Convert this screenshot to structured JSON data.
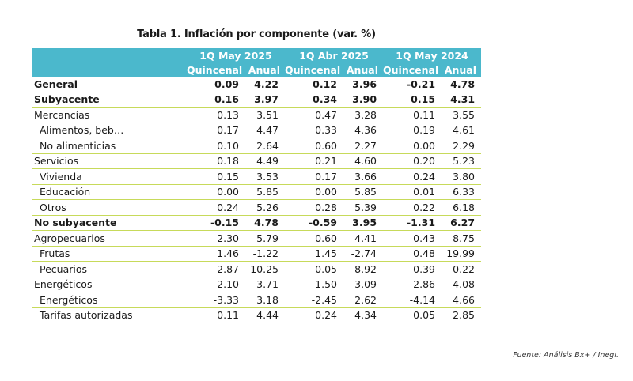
{
  "title": "Tabla 1. Inflación por componente (var. %)",
  "periods": [
    "1Q May 2025",
    "1Q Abr 2025",
    "1Q May 2024"
  ],
  "subheaders": [
    "Quincenal",
    "Anual",
    "Quincenal",
    "Anual",
    "Quincenal",
    "Anual"
  ],
  "rows": [
    {
      "label": "General",
      "values": [
        "0.09",
        "4.22",
        "0.12",
        "3.96",
        "-0.21",
        "4.78"
      ]
    },
    {
      "label": "Subyacente",
      "values": [
        "0.16",
        "3.97",
        "0.34",
        "3.90",
        "0.15",
        "4.31"
      ]
    },
    {
      "label": "Mercancías",
      "values": [
        "0.13",
        "3.51",
        "0.47",
        "3.28",
        "0.11",
        "3.55"
      ]
    },
    {
      "label": "Alimentos, beb…",
      "values": [
        "0.17",
        "4.47",
        "0.33",
        "4.36",
        "0.19",
        "4.61"
      ]
    },
    {
      "label": "No alimenticias",
      "values": [
        "0.10",
        "2.64",
        "0.60",
        "2.27",
        "0.00",
        "2.29"
      ]
    },
    {
      "label": "Servicios",
      "values": [
        "0.18",
        "4.49",
        "0.21",
        "4.60",
        "0.20",
        "5.23"
      ]
    },
    {
      "label": "Vivienda",
      "values": [
        "0.15",
        "3.53",
        "0.17",
        "3.66",
        "0.24",
        "3.80"
      ]
    },
    {
      "label": "Educación",
      "values": [
        "0.00",
        "5.85",
        "0.00",
        "5.85",
        "0.01",
        "6.33"
      ]
    },
    {
      "label": "Otros",
      "values": [
        "0.24",
        "5.26",
        "0.28",
        "5.39",
        "0.22",
        "6.18"
      ]
    },
    {
      "label": "No subyacente",
      "values": [
        "-0.15",
        "4.78",
        "-0.59",
        "3.95",
        "-1.31",
        "6.27"
      ]
    },
    {
      "label": "Agropecuarios",
      "values": [
        "2.30",
        "5.79",
        "0.60",
        "4.41",
        "0.43",
        "8.75"
      ]
    },
    {
      "label": "Frutas",
      "values": [
        "1.46",
        "-1.22",
        "1.45",
        "-2.74",
        "0.48",
        "19.99"
      ]
    },
    {
      "label": "Pecuarios",
      "values": [
        "2.87",
        "10.25",
        "0.05",
        "8.92",
        "0.39",
        "0.22"
      ]
    },
    {
      "label": "Energéticos",
      "values": [
        "-2.10",
        "3.71",
        "-1.50",
        "3.09",
        "-2.86",
        "4.08"
      ]
    },
    {
      "label": "Energéticos",
      "values": [
        "-3.33",
        "3.18",
        "-2.45",
        "2.62",
        "-4.14",
        "4.66"
      ]
    },
    {
      "label": "Tarifas autorizadas",
      "values": [
        "0.11",
        "4.44",
        "0.24",
        "4.34",
        "0.05",
        "2.85"
      ]
    }
  ],
  "source": "Fuente: Análisis Bx+ / Inegi.",
  "colors": {
    "header_bg": "#4bb8cc",
    "header_text": "#ffffff",
    "row_rule": "#c7da5a"
  }
}
